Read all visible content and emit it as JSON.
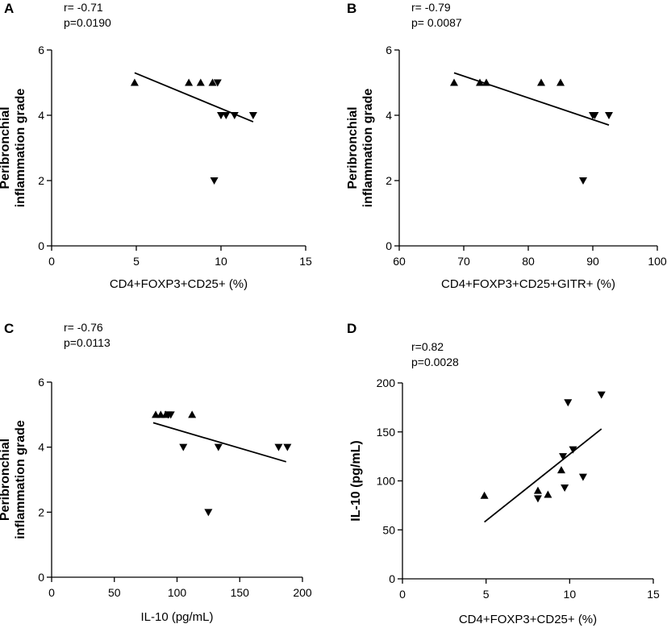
{
  "chart_data": [
    {
      "panel": "A",
      "type": "scatter",
      "stats": [
        "r= -0.71",
        "p=0.0190"
      ],
      "xlabel": "CD4+FOXP3+CD25+ (%)",
      "ylabel": [
        "Peribronchial",
        "inflammation grade"
      ],
      "xlim": [
        0,
        15
      ],
      "ylim": [
        0,
        6
      ],
      "xticks": [
        0,
        5,
        10,
        15
      ],
      "yticks": [
        0,
        2,
        4,
        6
      ],
      "points": [
        {
          "x": 4.9,
          "y": 5,
          "marker": "up"
        },
        {
          "x": 8.1,
          "y": 5,
          "marker": "up"
        },
        {
          "x": 8.8,
          "y": 5,
          "marker": "up"
        },
        {
          "x": 9.5,
          "y": 5,
          "marker": "up"
        },
        {
          "x": 9.8,
          "y": 5,
          "marker": "down"
        },
        {
          "x": 10.0,
          "y": 4,
          "marker": "down"
        },
        {
          "x": 10.3,
          "y": 4,
          "marker": "down"
        },
        {
          "x": 10.8,
          "y": 4,
          "marker": "down"
        },
        {
          "x": 11.9,
          "y": 4,
          "marker": "down"
        },
        {
          "x": 9.6,
          "y": 2,
          "marker": "down"
        }
      ],
      "fit": [
        [
          4.9,
          5.3
        ],
        [
          11.9,
          3.8
        ]
      ]
    },
    {
      "panel": "B",
      "type": "scatter",
      "stats": [
        "r= -0.79",
        "p= 0.0087"
      ],
      "xlabel": "CD4+FOXP3+CD25+GITR+ (%)",
      "ylabel": [
        "Peribronchial",
        "inflammation grade"
      ],
      "xlim": [
        60,
        100
      ],
      "ylim": [
        0,
        6
      ],
      "xticks": [
        60,
        70,
        80,
        90,
        100
      ],
      "yticks": [
        0,
        2,
        4,
        6
      ],
      "points": [
        {
          "x": 68.5,
          "y": 5,
          "marker": "up"
        },
        {
          "x": 72.5,
          "y": 5,
          "marker": "up"
        },
        {
          "x": 73.5,
          "y": 5,
          "marker": "up"
        },
        {
          "x": 82.0,
          "y": 5,
          "marker": "up"
        },
        {
          "x": 85.0,
          "y": 5,
          "marker": "up"
        },
        {
          "x": 90.0,
          "y": 4,
          "marker": "down"
        },
        {
          "x": 90.3,
          "y": 4,
          "marker": "down"
        },
        {
          "x": 92.5,
          "y": 4,
          "marker": "down"
        },
        {
          "x": 88.5,
          "y": 2,
          "marker": "down"
        }
      ],
      "fit": [
        [
          68.5,
          5.3
        ],
        [
          92.5,
          3.7
        ]
      ]
    },
    {
      "panel": "C",
      "type": "scatter",
      "stats": [
        "r= -0.76",
        "p=0.0113"
      ],
      "xlabel": "IL-10 (pg/mL)",
      "ylabel": [
        "Peribronchial",
        "inflammation grade"
      ],
      "xlim": [
        0,
        200
      ],
      "ylim": [
        0,
        6
      ],
      "xticks": [
        0,
        50,
        100,
        150,
        200
      ],
      "yticks": [
        0,
        2,
        4,
        6
      ],
      "points": [
        {
          "x": 83,
          "y": 5,
          "marker": "up"
        },
        {
          "x": 87,
          "y": 5,
          "marker": "up"
        },
        {
          "x": 91,
          "y": 5,
          "marker": "up"
        },
        {
          "x": 93,
          "y": 5,
          "marker": "down"
        },
        {
          "x": 95,
          "y": 5,
          "marker": "down"
        },
        {
          "x": 112,
          "y": 5,
          "marker": "up"
        },
        {
          "x": 105,
          "y": 4,
          "marker": "down"
        },
        {
          "x": 133,
          "y": 4,
          "marker": "down"
        },
        {
          "x": 181,
          "y": 4,
          "marker": "down"
        },
        {
          "x": 188,
          "y": 4,
          "marker": "down"
        },
        {
          "x": 125,
          "y": 2,
          "marker": "down"
        }
      ],
      "fit": [
        [
          81,
          4.75
        ],
        [
          187,
          3.55
        ]
      ]
    },
    {
      "panel": "D",
      "type": "scatter",
      "stats": [
        "r=0.82",
        "p=0.0028"
      ],
      "xlabel": "CD4+FOXP3+CD25+ (%)",
      "ylabel": [
        "IL-10 (pg/mL)"
      ],
      "xlim": [
        0,
        15
      ],
      "ylim": [
        0,
        200
      ],
      "xticks": [
        0,
        5,
        10,
        15
      ],
      "yticks": [
        0,
        50,
        100,
        150,
        200
      ],
      "points": [
        {
          "x": 4.9,
          "y": 85,
          "marker": "up"
        },
        {
          "x": 8.1,
          "y": 90,
          "marker": "up"
        },
        {
          "x": 8.1,
          "y": 82,
          "marker": "down"
        },
        {
          "x": 8.7,
          "y": 86,
          "marker": "up"
        },
        {
          "x": 9.5,
          "y": 111,
          "marker": "up"
        },
        {
          "x": 9.6,
          "y": 125,
          "marker": "down"
        },
        {
          "x": 9.7,
          "y": 93,
          "marker": "down"
        },
        {
          "x": 9.9,
          "y": 180,
          "marker": "down"
        },
        {
          "x": 10.2,
          "y": 132,
          "marker": "down"
        },
        {
          "x": 10.8,
          "y": 104,
          "marker": "down"
        },
        {
          "x": 11.9,
          "y": 188,
          "marker": "down"
        }
      ],
      "fit": [
        [
          4.9,
          58
        ],
        [
          11.9,
          153
        ]
      ]
    }
  ]
}
